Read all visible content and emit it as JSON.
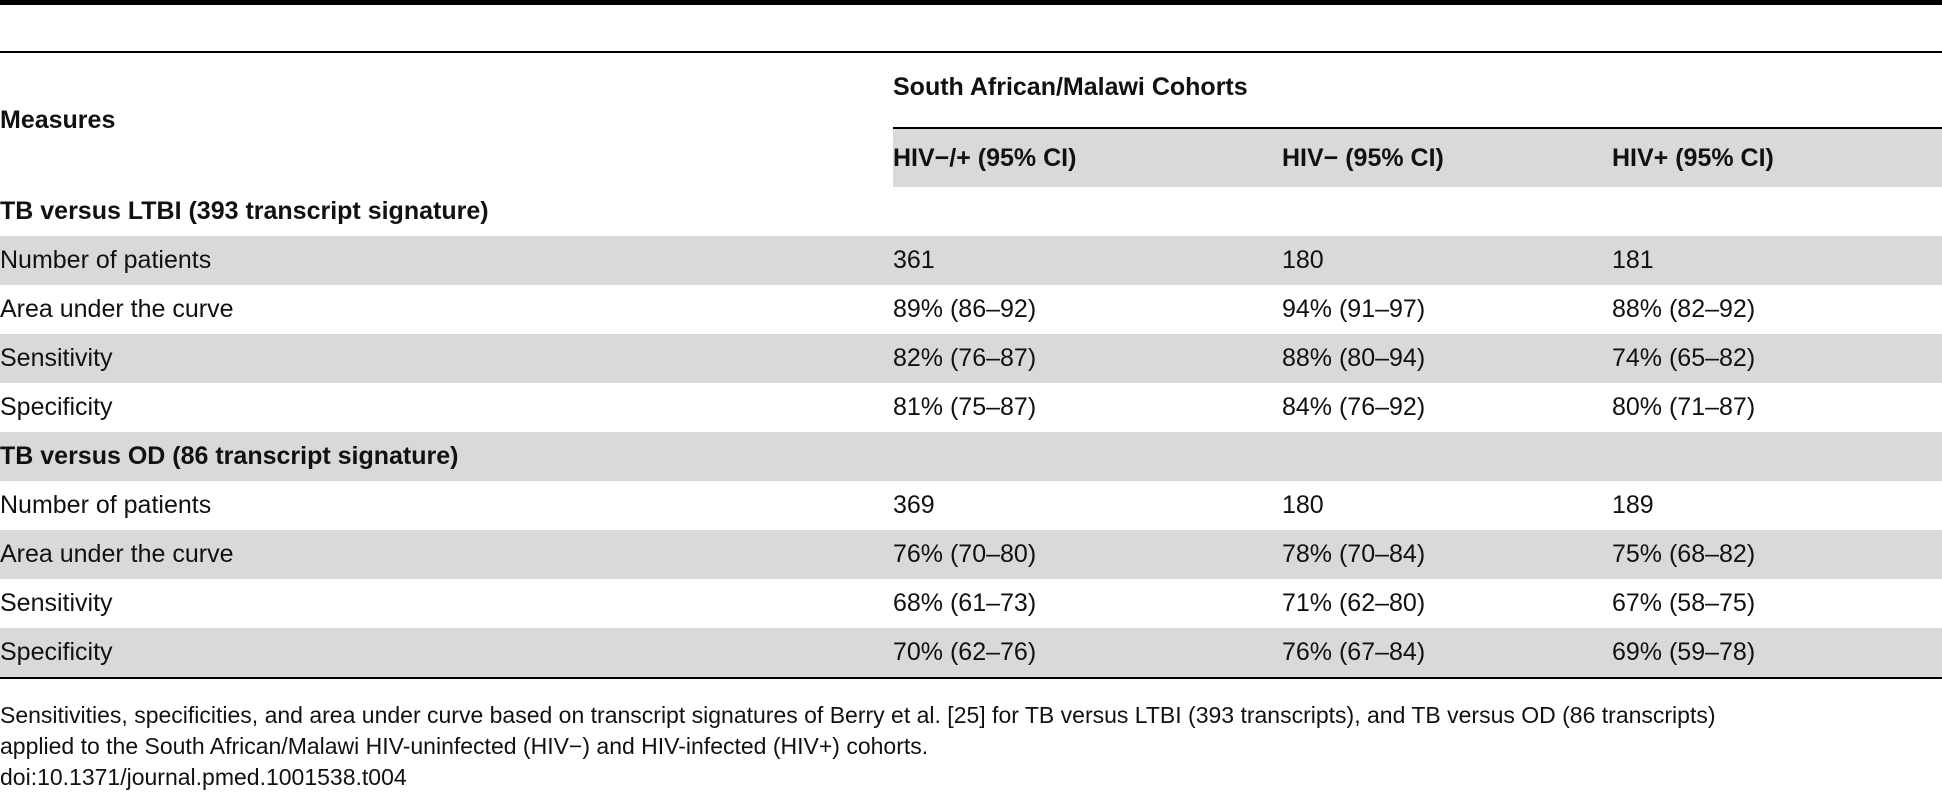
{
  "table": {
    "header": {
      "measures_label": "Measures",
      "group_label": "South African/Malawi Cohorts",
      "columns": [
        "HIV−/+ (95% CI)",
        "HIV− (95% CI)",
        "HIV+ (95% CI)"
      ]
    },
    "sections": [
      {
        "title": "TB versus LTBI (393 transcript signature)",
        "rows": [
          {
            "label": "Number of patients",
            "values": [
              "361",
              "180",
              "181"
            ]
          },
          {
            "label": "Area under the curve",
            "values": [
              "89% (86–92)",
              "94% (91–97)",
              "88% (82–92)"
            ]
          },
          {
            "label": "Sensitivity",
            "values": [
              "82% (76–87)",
              "88% (80–94)",
              "74% (65–82)"
            ]
          },
          {
            "label": "Specificity",
            "values": [
              "81% (75–87)",
              "84% (76–92)",
              "80% (71–87)"
            ]
          }
        ]
      },
      {
        "title": "TB versus OD (86 transcript signature)",
        "rows": [
          {
            "label": "Number of patients",
            "values": [
              "369",
              "180",
              "189"
            ]
          },
          {
            "label": "Area under the curve",
            "values": [
              "76% (70–80)",
              "78% (70–84)",
              "75% (68–82)"
            ]
          },
          {
            "label": "Sensitivity",
            "values": [
              "68% (61–73)",
              "71% (62–80)",
              "67% (58–75)"
            ]
          },
          {
            "label": "Specificity",
            "values": [
              "70% (62–76)",
              "76% (67–84)",
              "69% (59–78)"
            ]
          }
        ]
      }
    ]
  },
  "caption": {
    "line1": "Sensitivities, specificities, and area under curve based on transcript signatures of Berry et al. [25] for TB versus LTBI (393 transcripts), and TB versus OD (86 transcripts)",
    "line2": "applied to the South African/Malawi HIV-uninfected (HIV−) and HIV-infected (HIV+) cohorts.",
    "doi": "doi:10.1371/journal.pmed.1001538.t004"
  },
  "colors": {
    "row_shade": "#d9d9d9",
    "rule": "#000000",
    "text": "#111111"
  }
}
